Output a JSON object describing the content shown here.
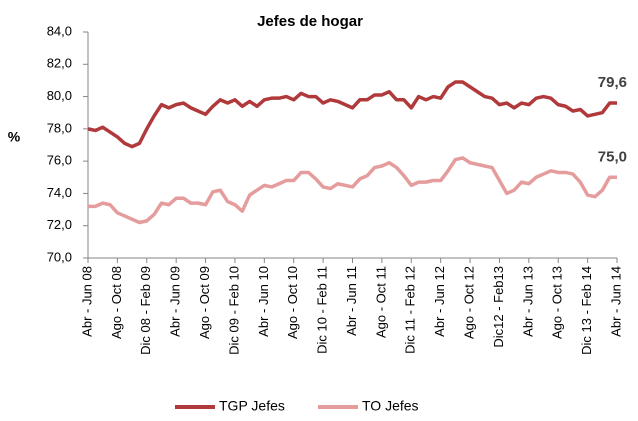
{
  "chart_data": {
    "type": "line",
    "title": "Jefes de hogar",
    "y_label": "%",
    "categories": [
      "Abr - Jun 08",
      null,
      null,
      null,
      "Ago - Oct 08",
      null,
      null,
      null,
      "Dic 08 - Feb 09",
      null,
      null,
      null,
      "Abr - Jun 09",
      null,
      null,
      null,
      "Ago - Oct 09",
      null,
      null,
      null,
      "Dic 09 - Feb 10",
      null,
      null,
      null,
      "Abr - Jun 10",
      null,
      null,
      null,
      "Ago - Oct 10",
      null,
      null,
      null,
      "Dic 10 - Feb 11",
      null,
      null,
      null,
      "Abr - Jun 11",
      null,
      null,
      null,
      "Ago - Oct 11",
      null,
      null,
      null,
      "Dic 11 - Feb 12",
      null,
      null,
      null,
      "Abr - Jun 12",
      null,
      null,
      null,
      "Ago - Oct 12",
      null,
      null,
      null,
      "Dic12 - Feb13",
      null,
      null,
      null,
      "Abr - Jun 13",
      null,
      null,
      null,
      "Ago - Oct 13",
      null,
      null,
      null,
      "Dic 13 - Feb 14",
      null,
      null,
      null,
      "Abr - Jun 14"
    ],
    "series": [
      {
        "name": "TGP Jefes",
        "color": "#b0393b",
        "values": [
          78.0,
          77.9,
          78.1,
          77.8,
          77.5,
          77.1,
          76.9,
          77.1,
          78.0,
          78.8,
          79.5,
          79.3,
          79.5,
          79.6,
          79.3,
          79.1,
          78.9,
          79.4,
          79.8,
          79.6,
          79.8,
          79.4,
          79.7,
          79.4,
          79.8,
          79.9,
          79.9,
          80.0,
          79.8,
          80.2,
          80.0,
          80.0,
          79.6,
          79.8,
          79.7,
          79.5,
          79.3,
          79.8,
          79.8,
          80.1,
          80.1,
          80.3,
          79.8,
          79.8,
          79.3,
          80.0,
          79.8,
          80.0,
          79.9,
          80.6,
          80.9,
          80.9,
          80.6,
          80.3,
          80.0,
          79.9,
          79.5,
          79.6,
          79.3,
          79.6,
          79.5,
          79.9,
          80.0,
          79.9,
          79.5,
          79.4,
          79.1,
          79.2,
          78.8,
          78.9,
          79.0,
          79.6,
          79.6
        ],
        "value_labels": [
          null,
          null,
          null,
          null,
          null,
          null,
          null,
          null,
          null,
          null,
          null,
          null,
          null,
          null,
          null,
          null,
          null,
          null,
          null,
          null,
          null,
          null,
          null,
          null,
          null,
          null,
          null,
          null,
          null,
          null,
          null,
          null,
          null,
          null,
          null,
          null,
          null,
          null,
          null,
          null,
          null,
          null,
          null,
          null,
          null,
          null,
          null,
          null,
          null,
          null,
          null,
          null,
          null,
          null,
          null,
          null,
          null,
          null,
          null,
          null,
          null,
          null,
          null,
          null,
          null,
          null,
          null,
          null,
          null,
          null,
          null,
          null,
          "79,6"
        ]
      },
      {
        "name": "TO Jefes",
        "color": "#e59c9c",
        "values": [
          73.2,
          73.2,
          73.4,
          73.3,
          72.8,
          72.6,
          72.4,
          72.2,
          72.3,
          72.7,
          73.4,
          73.3,
          73.7,
          73.7,
          73.4,
          73.4,
          73.3,
          74.1,
          74.2,
          73.5,
          73.3,
          72.9,
          73.9,
          74.2,
          74.5,
          74.4,
          74.6,
          74.8,
          74.8,
          75.3,
          75.3,
          74.9,
          74.4,
          74.3,
          74.6,
          74.5,
          74.4,
          74.9,
          75.1,
          75.6,
          75.7,
          75.9,
          75.6,
          75.1,
          74.5,
          74.7,
          74.7,
          74.8,
          74.8,
          75.4,
          76.1,
          76.2,
          75.9,
          75.8,
          75.7,
          75.6,
          74.8,
          74.0,
          74.2,
          74.7,
          74.6,
          75.0,
          75.2,
          75.4,
          75.3,
          75.3,
          75.2,
          74.7,
          73.9,
          73.8,
          74.2,
          75.0,
          75.0
        ],
        "value_labels": [
          null,
          null,
          null,
          null,
          null,
          null,
          null,
          null,
          null,
          null,
          null,
          null,
          null,
          null,
          null,
          null,
          null,
          null,
          null,
          null,
          null,
          null,
          null,
          null,
          null,
          null,
          null,
          null,
          null,
          null,
          null,
          null,
          null,
          null,
          null,
          null,
          null,
          null,
          null,
          null,
          null,
          null,
          null,
          null,
          null,
          null,
          null,
          null,
          null,
          null,
          null,
          null,
          null,
          null,
          null,
          null,
          null,
          null,
          null,
          null,
          null,
          null,
          null,
          null,
          null,
          null,
          null,
          null,
          null,
          null,
          null,
          null,
          "75,0"
        ]
      }
    ],
    "ylim": [
      70,
      84
    ],
    "yticks": [
      {
        "value": 70,
        "label": "70,0"
      },
      {
        "value": 72,
        "label": "72,0"
      },
      {
        "value": 74,
        "label": "74,0"
      },
      {
        "value": 76,
        "label": "76,0"
      },
      {
        "value": 78,
        "label": "78,0"
      },
      {
        "value": 80,
        "label": "80,0"
      },
      {
        "value": 82,
        "label": "82,0"
      },
      {
        "value": 84,
        "label": "84,0"
      }
    ],
    "legend": "bottom"
  }
}
